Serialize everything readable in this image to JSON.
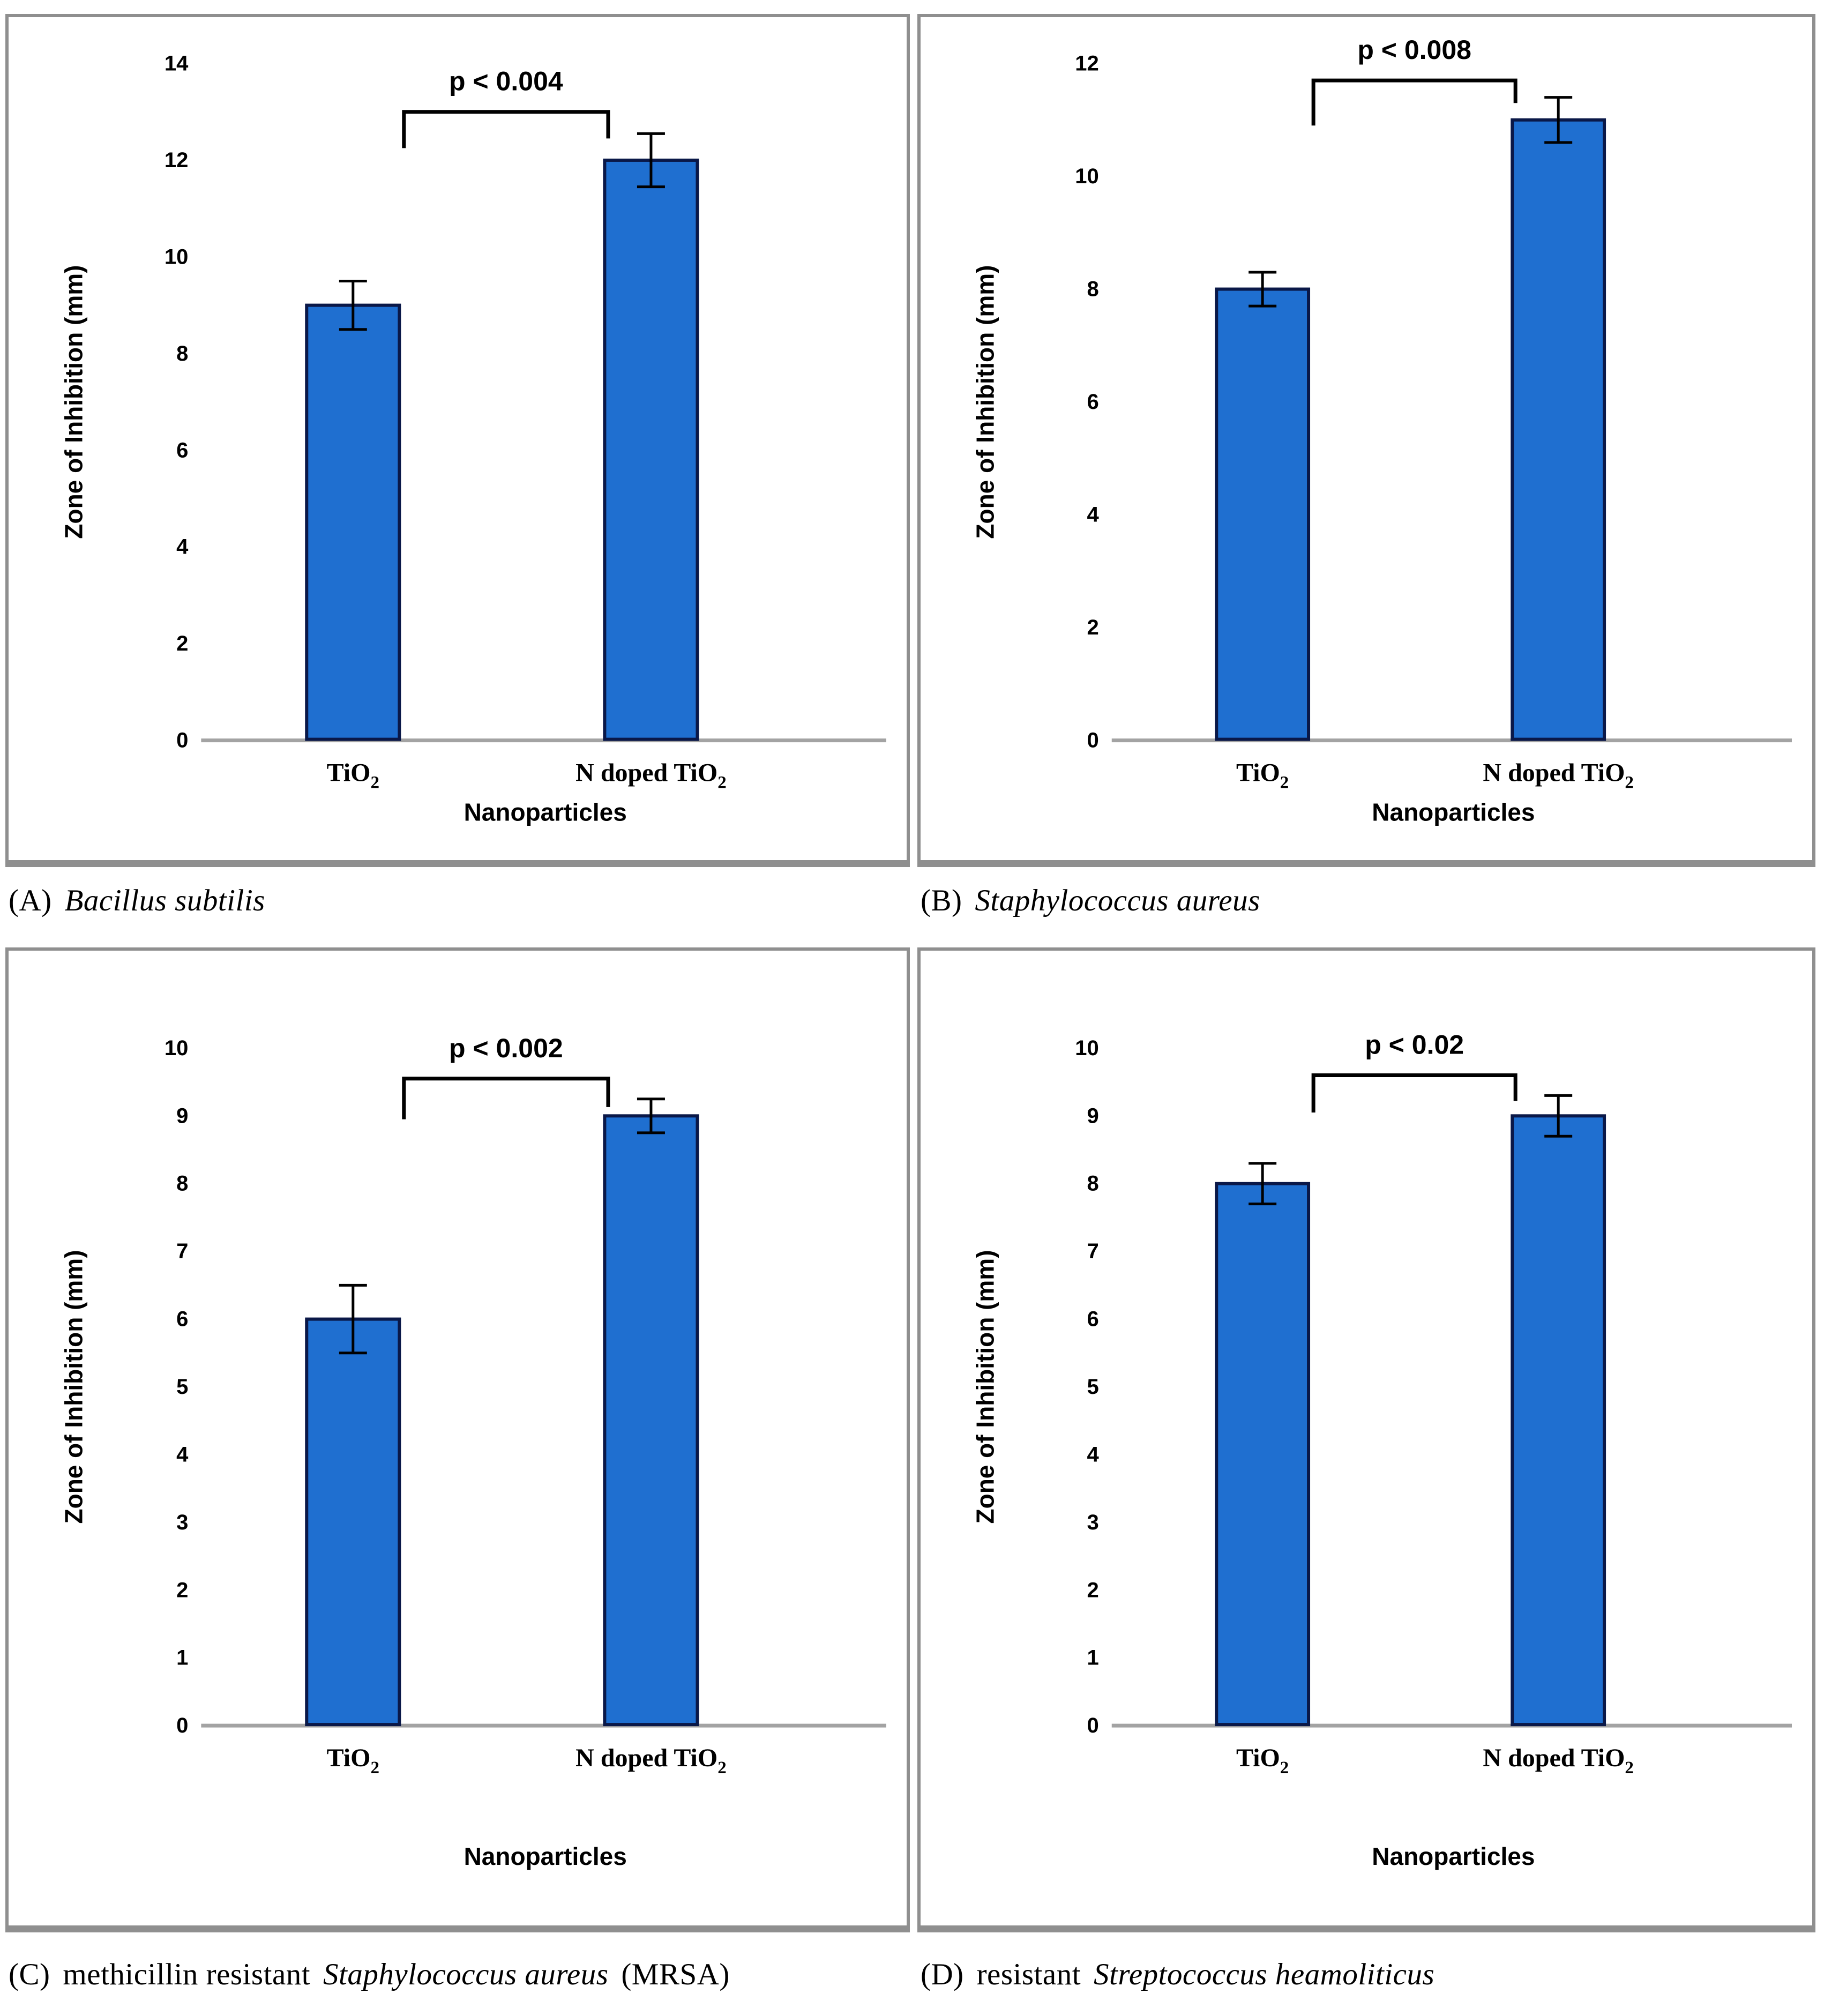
{
  "figure": {
    "captions": [
      {
        "prefix": "(A)",
        "pre": "",
        "italic": "Bacillus subtilis",
        "suffix": ""
      },
      {
        "prefix": "(B)",
        "pre": "",
        "italic": "Staphylococcus aureus",
        "suffix": ""
      },
      {
        "prefix": "(C)",
        "pre": "methicillin resistant",
        "italic": "Staphylococcus aureus",
        "suffix": "(MRSA)"
      },
      {
        "prefix": "(D)",
        "pre": "resistant",
        "italic": "Streptococcus heamoliticus",
        "suffix": ""
      }
    ],
    "colors": {
      "bar_fill": "#1f6fd0",
      "bar_edge": "#0a1848",
      "axis_line": "#a3a3a3",
      "panel_border": "#8f8f8f",
      "text": "#000000"
    }
  },
  "chart_data": [
    {
      "type": "bar",
      "panel": "A",
      "categories": [
        {
          "base": "TiO",
          "sub": "2"
        },
        {
          "base": "N doped TiO",
          "sub": "2"
        }
      ],
      "values": [
        9,
        12
      ],
      "errors": [
        0.5,
        0.55
      ],
      "significance": "p < 0.004",
      "bracket_y": 13.0,
      "bracket_drops": [
        0.75,
        0.55
      ],
      "xlabel": "Nanoparticles",
      "ylabel": "Zone of Inhibition (mm)",
      "ylim": [
        0,
        14
      ],
      "ytick_step": 2,
      "grid": false,
      "legend": false
    },
    {
      "type": "bar",
      "panel": "B",
      "categories": [
        {
          "base": "TiO",
          "sub": "2"
        },
        {
          "base": "N doped TiO",
          "sub": "2"
        }
      ],
      "values": [
        8,
        11
      ],
      "errors": [
        0.3,
        0.4
      ],
      "significance": "p < 0.008",
      "bracket_y": 11.7,
      "bracket_drops": [
        0.8,
        0.4
      ],
      "xlabel": "Nanoparticles",
      "ylabel": "Zone of Inhibition (mm)",
      "ylim": [
        0,
        12
      ],
      "ytick_step": 2,
      "grid": false,
      "legend": false
    },
    {
      "type": "bar",
      "panel": "C",
      "categories": [
        {
          "base": "TiO",
          "sub": "2"
        },
        {
          "base": "N doped TiO",
          "sub": "2"
        }
      ],
      "values": [
        6,
        9
      ],
      "errors": [
        0.5,
        0.25
      ],
      "significance": "p < 0.002",
      "bracket_y": 9.55,
      "bracket_drops": [
        0.6,
        0.42
      ],
      "xlabel": "Nanoparticles",
      "ylabel": "Zone of Inhibition (mm)",
      "ylim": [
        0,
        10
      ],
      "ytick_step": 1,
      "grid": false,
      "legend": false
    },
    {
      "type": "bar",
      "panel": "D",
      "categories": [
        {
          "base": "TiO",
          "sub": "2"
        },
        {
          "base": "N doped TiO",
          "sub": "2"
        }
      ],
      "values": [
        8,
        9
      ],
      "errors": [
        0.3,
        0.3
      ],
      "significance": "p < 0.02",
      "bracket_y": 9.6,
      "bracket_drops": [
        0.55,
        0.38
      ],
      "xlabel": "Nanoparticles",
      "ylabel": "Zone of Inhibition (mm)",
      "ylim": [
        0,
        10
      ],
      "ytick_step": 1,
      "grid": false,
      "legend": false
    }
  ]
}
